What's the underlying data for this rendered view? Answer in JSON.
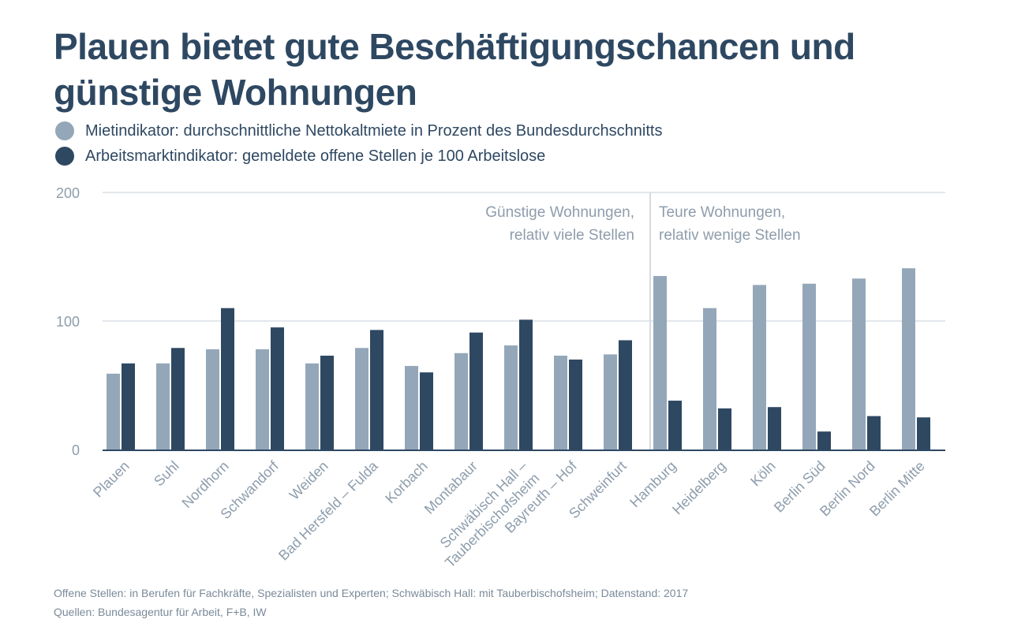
{
  "title": "Plauen bietet gute Beschäftigungschancen und günstige Wohnungen",
  "legend": [
    {
      "label": "Mietindikator: durchschnittliche Nettokaltmiete in Prozent des Bundesdurchschnitts",
      "color": "#94a7b8"
    },
    {
      "label": "Arbeitsmarktindikator: gemeldete offene Stellen je 100 Arbeitslose",
      "color": "#2e4862"
    }
  ],
  "chart_data": {
    "type": "bar",
    "categories": [
      "Plauen",
      "Suhl",
      "Nordhorn",
      "Schwandorf",
      "Weiden",
      "Bad Hersfeld – Fulda",
      "Korbach",
      "Montabaur",
      "Schwäbisch Hall –\nTauberbischofsheim",
      "Bayreuth – Hof",
      "Schweinfurt",
      "Hamburg",
      "Heidelberg",
      "Köln",
      "Berlin Süd",
      "Berlin Nord",
      "Berlin Mitte"
    ],
    "series": [
      {
        "name": "Mietindikator: durchschnittliche Nettokaltmiete in Prozent des Bundesdurchschnitts",
        "values": [
          59,
          67,
          78,
          78,
          67,
          79,
          65,
          75,
          81,
          73,
          74,
          135,
          110,
          128,
          129,
          133,
          141
        ]
      },
      {
        "name": "Arbeitsmarktindikator: gemeldete offene Stellen je 100 Arbeitslose",
        "values": [
          67,
          79,
          110,
          95,
          73,
          93,
          60,
          91,
          101,
          70,
          85,
          38,
          32,
          33,
          14,
          26,
          25
        ]
      }
    ],
    "ylim": [
      0,
      200
    ],
    "yticks": [
      0,
      100,
      200
    ],
    "divider_after_category": "Schweinfurt",
    "annotations": [
      {
        "text": "Günstige Wohnungen,\nrelativ viele Stellen",
        "align": "right"
      },
      {
        "text": "Teure Wohnungen,\nrelativ wenige Stellen",
        "align": "left"
      }
    ],
    "title": "Plauen bietet gute Beschäftigungschancen und günstige Wohnungen",
    "xlabel": "",
    "ylabel": ""
  },
  "footer": {
    "note": "Offene Stellen: in Berufen für Fachkräfte, Spezialisten und Experten; Schwäbisch Hall: mit Tauberbischofsheim; Datenstand: 2017",
    "sources": "Quellen: Bundesagentur für Arbeit, F+B, IW"
  }
}
